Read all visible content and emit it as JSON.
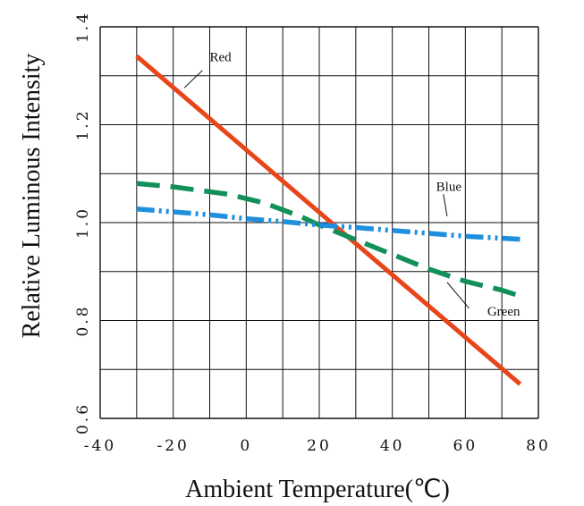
{
  "chart_data": {
    "type": "line",
    "xlabel": "Ambient  Temperature(℃)",
    "ylabel": "Relative  Luminous  Intensity",
    "xlim": [
      -40,
      80
    ],
    "ylim": [
      0.6,
      1.4
    ],
    "xticks": [
      "-40",
      "-20",
      "0",
      "20",
      "40",
      "60",
      "80"
    ],
    "yticks": [
      "0.6",
      "0.8",
      "1.0",
      "1.2",
      "1.4"
    ],
    "grid": true,
    "series": [
      {
        "name": "Red",
        "color": "#e8461a",
        "dash": "solid",
        "x": [
          -30,
          75
        ],
        "y": [
          1.34,
          0.67
        ]
      },
      {
        "name": "Green",
        "color": "#13905a",
        "dash": "dashed",
        "x": [
          -30,
          -20,
          -5,
          5,
          15,
          20,
          30,
          40,
          50,
          60,
          70,
          75
        ],
        "y": [
          1.08,
          1.073,
          1.058,
          1.04,
          1.012,
          0.995,
          0.965,
          0.935,
          0.905,
          0.88,
          0.862,
          0.85
        ]
      },
      {
        "name": "Blue",
        "color": "#1f8fde",
        "dash": "dashdotdot",
        "x": [
          -30,
          -20,
          -10,
          0,
          10,
          20,
          30,
          40,
          50,
          60,
          70,
          75
        ],
        "y": [
          1.028,
          1.022,
          1.016,
          1.008,
          1.002,
          0.995,
          0.99,
          0.984,
          0.978,
          0.972,
          0.968,
          0.966
        ]
      }
    ],
    "annotations": [
      {
        "text": "Red",
        "series": "Red",
        "x": -10,
        "y": 1.33
      },
      {
        "text": "Blue",
        "series": "Blue",
        "x": 52,
        "y": 1.065
      },
      {
        "text": "Green",
        "series": "Green",
        "x": 66,
        "y": 0.81
      }
    ]
  }
}
